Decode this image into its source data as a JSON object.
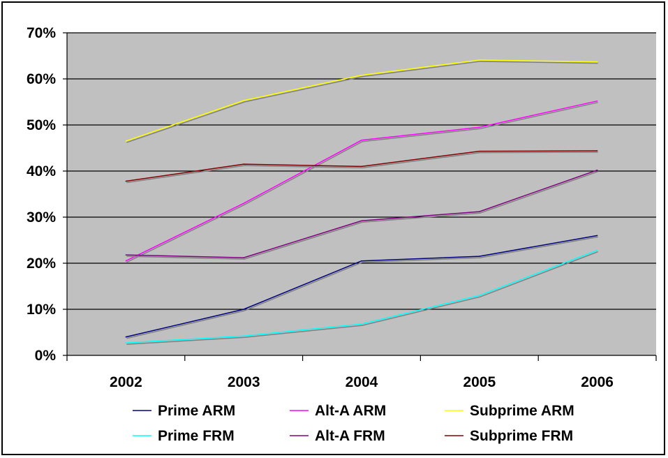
{
  "chart_data": {
    "type": "line",
    "title": "",
    "xlabel": "",
    "ylabel": "",
    "categories": [
      "2002",
      "2003",
      "2004",
      "2005",
      "2006"
    ],
    "ylim": [
      0,
      70
    ],
    "y_ticks": [
      "0%",
      "10%",
      "20%",
      "30%",
      "40%",
      "50%",
      "60%",
      "70%"
    ],
    "grid": true,
    "plot_background": "#c0c0c0",
    "legend_position": "bottom",
    "series": [
      {
        "name": "Prime ARM",
        "color": "#000080",
        "values": [
          4,
          10,
          20.5,
          21.5,
          26
        ]
      },
      {
        "name": "Alt-A ARM",
        "color": "#ff00ff",
        "values": [
          20.5,
          33,
          46.7,
          49.5,
          55.2
        ]
      },
      {
        "name": "Subprime ARM",
        "color": "#ffff00",
        "values": [
          46.5,
          55.3,
          60.8,
          64.1,
          63.7
        ]
      },
      {
        "name": "Prime FRM",
        "color": "#00ffff",
        "values": [
          2.7,
          4.2,
          6.8,
          13,
          22.8
        ]
      },
      {
        "name": "Alt-A FRM",
        "color": "#800080",
        "values": [
          21.8,
          21.2,
          29.2,
          31.2,
          40.2
        ]
      },
      {
        "name": "Subprime FRM",
        "color": "#800000",
        "values": [
          37.8,
          41.5,
          41,
          44.3,
          44.4
        ]
      }
    ]
  }
}
